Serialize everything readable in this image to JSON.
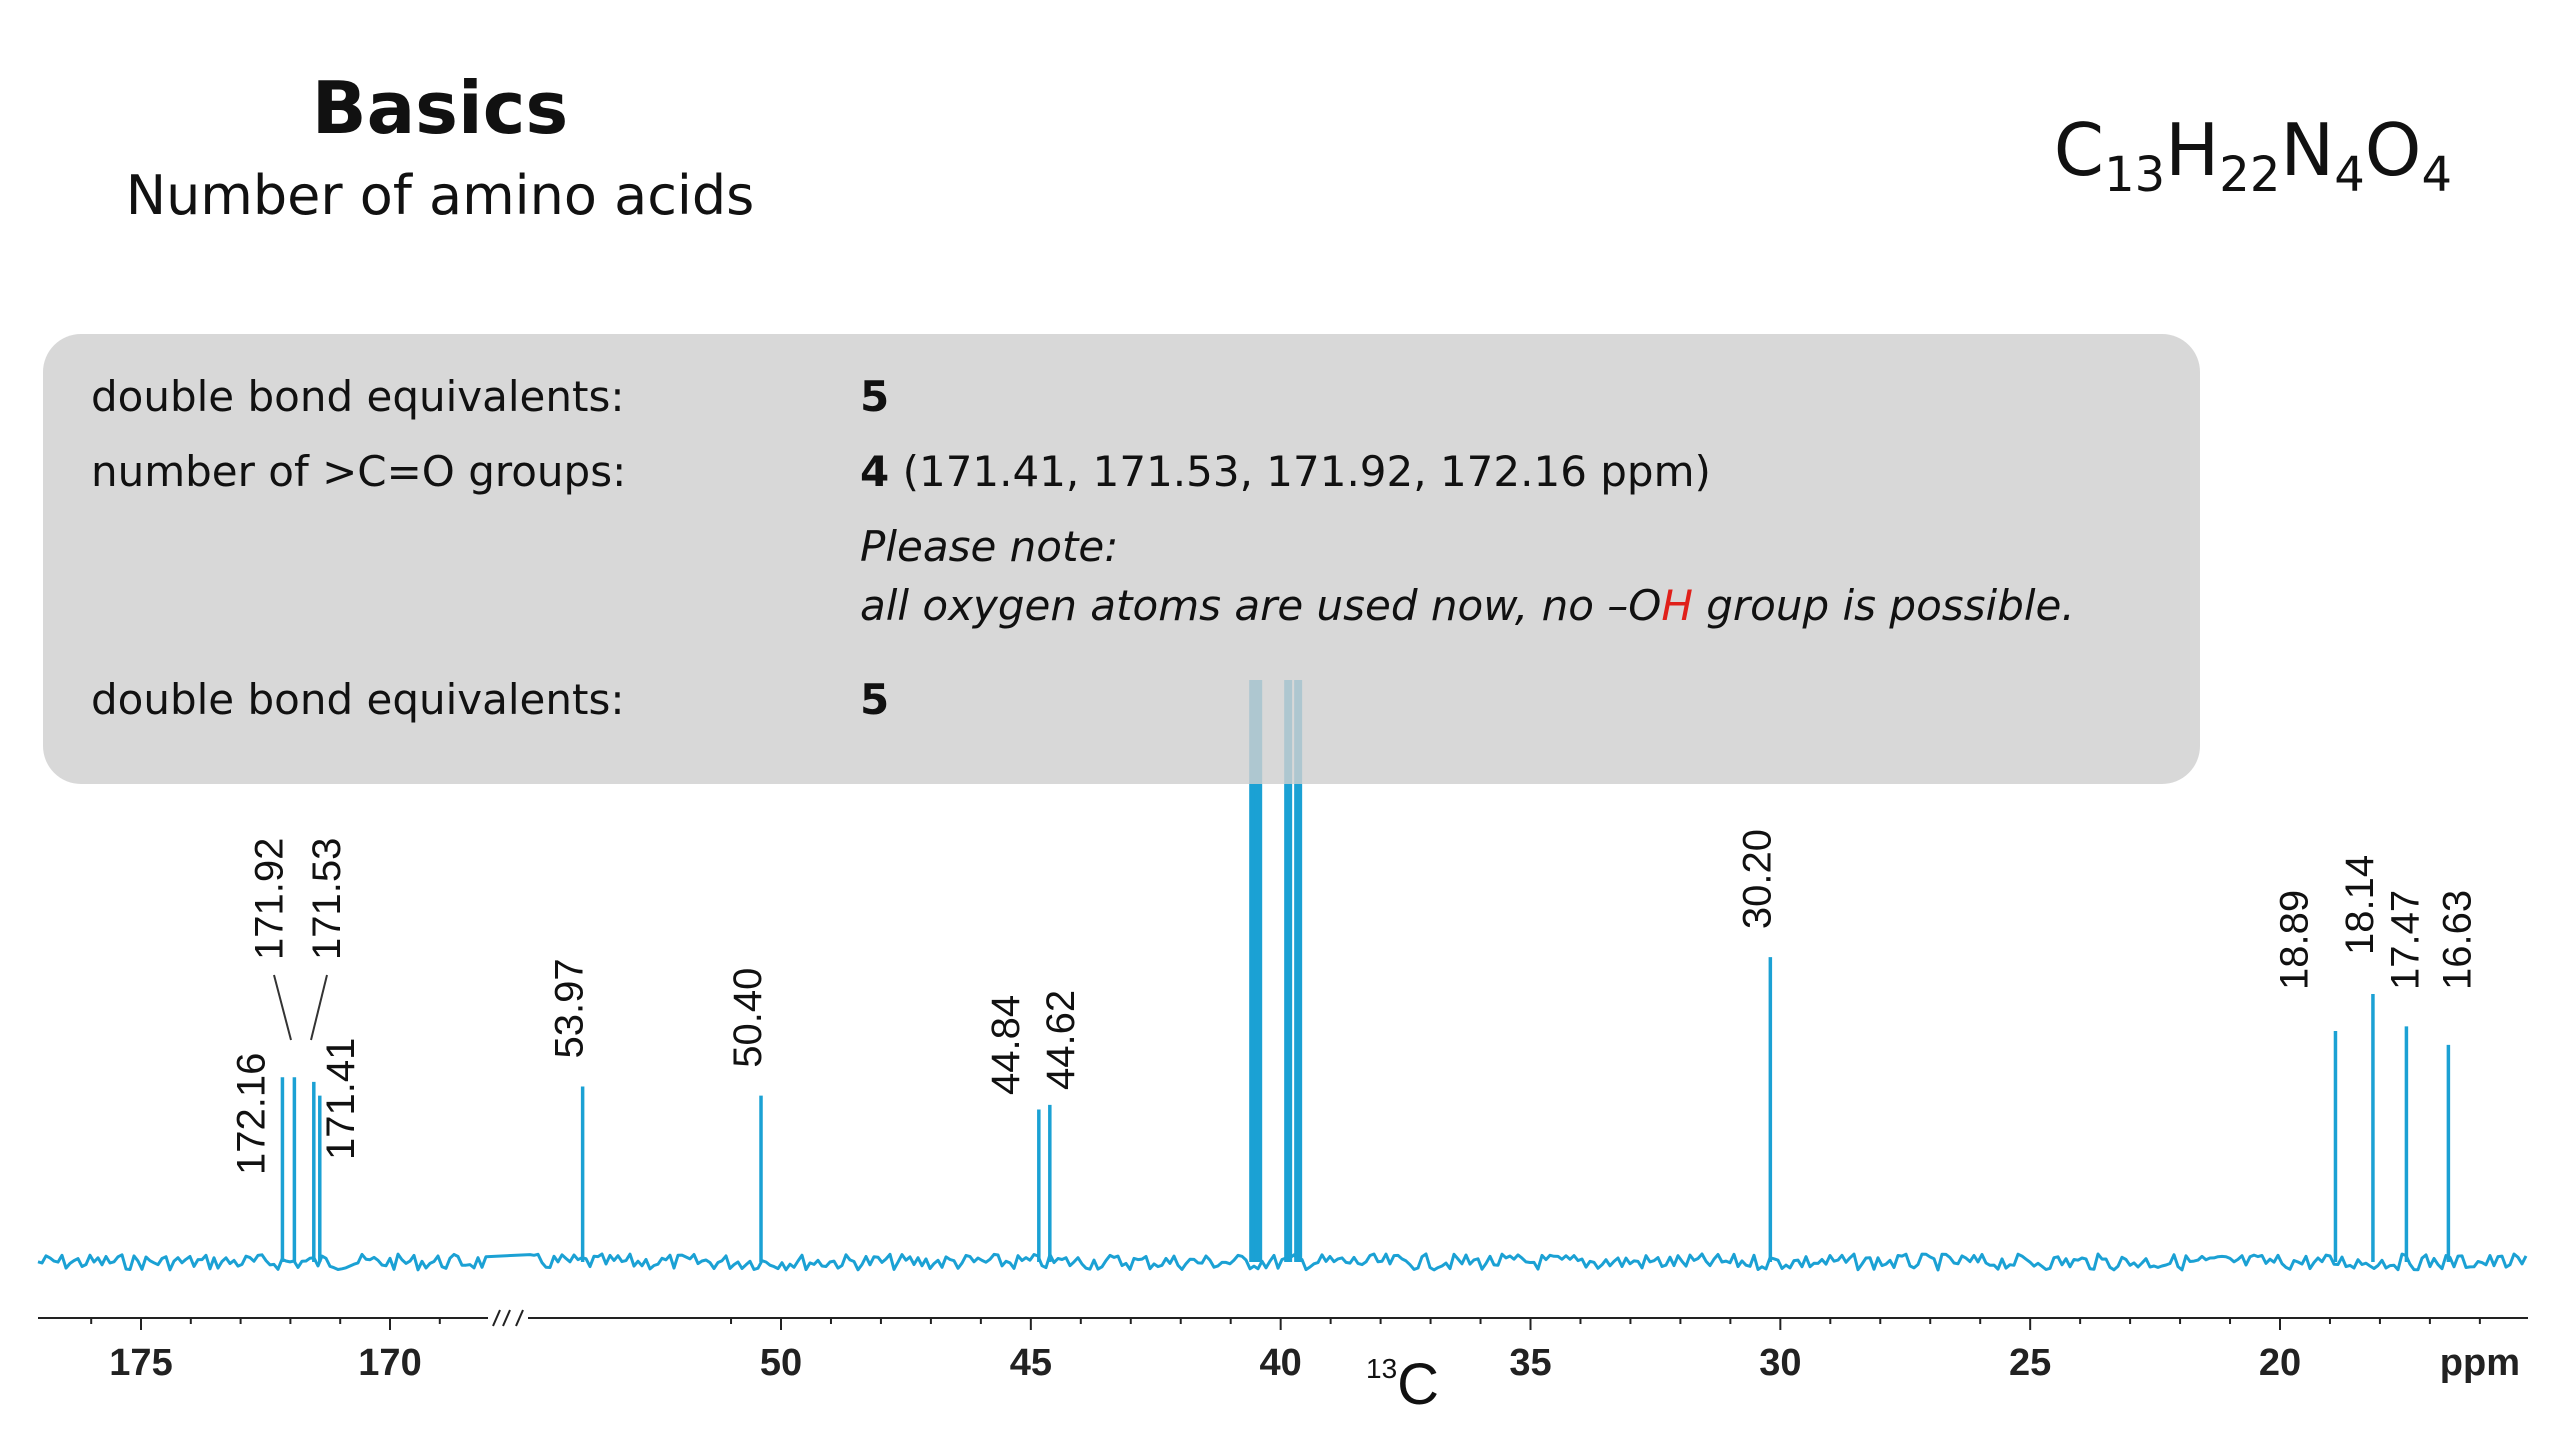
{
  "header": {
    "title": "Basics",
    "subtitle": "Number of amino acids",
    "formula": {
      "c": "C",
      "c_n": "13",
      "h": "H",
      "h_n": "22",
      "n": "N",
      "n_n": "4",
      "o": "O",
      "o_n": "4"
    }
  },
  "panel": {
    "row1_label": "double bond equivalents:",
    "row1_value": "5",
    "row2_label": "number of >C=O groups:",
    "row2_value": "4",
    "row2_detail": " (171.41, 171.53, 171.92, 172.16 ppm)",
    "note_title": "Please note:",
    "note_pre": "all oxygen atoms are used now, no –O",
    "note_h": "H",
    "note_post": " group is possible.",
    "row3_label": "double bond equivalents:",
    "row3_value": "5"
  },
  "chart_data": {
    "type": "line",
    "nucleus_label": "13C",
    "unit_label": "ppm",
    "x_reversed": true,
    "axis_break": [
      170,
      55
    ],
    "xticks": [
      175,
      170,
      50,
      45,
      40,
      35,
      30,
      25,
      20
    ],
    "color": "#1ba1d4",
    "peaks": [
      {
        "ppm": 172.16,
        "label": "172.16",
        "height": 0.4
      },
      {
        "ppm": 171.92,
        "label": "171.92",
        "height": 0.4
      },
      {
        "ppm": 171.53,
        "label": "171.53",
        "height": 0.39
      },
      {
        "ppm": 171.41,
        "label": "171.41",
        "height": 0.36
      },
      {
        "ppm": 53.97,
        "label": "53.97",
        "height": 0.38
      },
      {
        "ppm": 50.4,
        "label": "50.40",
        "height": 0.36
      },
      {
        "ppm": 44.84,
        "label": "44.84",
        "height": 0.33
      },
      {
        "ppm": 44.62,
        "label": "44.62",
        "height": 0.34
      },
      {
        "ppm": 30.2,
        "label": "30.20",
        "height": 0.66
      },
      {
        "ppm": 18.89,
        "label": "18.89",
        "height": 0.5
      },
      {
        "ppm": 18.14,
        "label": "18.14",
        "height": 0.58
      },
      {
        "ppm": 17.47,
        "label": "17.47",
        "height": 0.51
      },
      {
        "ppm": 16.63,
        "label": "16.63",
        "height": 0.47
      }
    ],
    "solvent_peaks": [
      {
        "ppm": 40.55,
        "height": 1.0
      },
      {
        "ppm": 40.45,
        "height": 1.0
      },
      {
        "ppm": 39.85,
        "height": 1.0
      },
      {
        "ppm": 39.65,
        "height": 1.0
      }
    ]
  }
}
